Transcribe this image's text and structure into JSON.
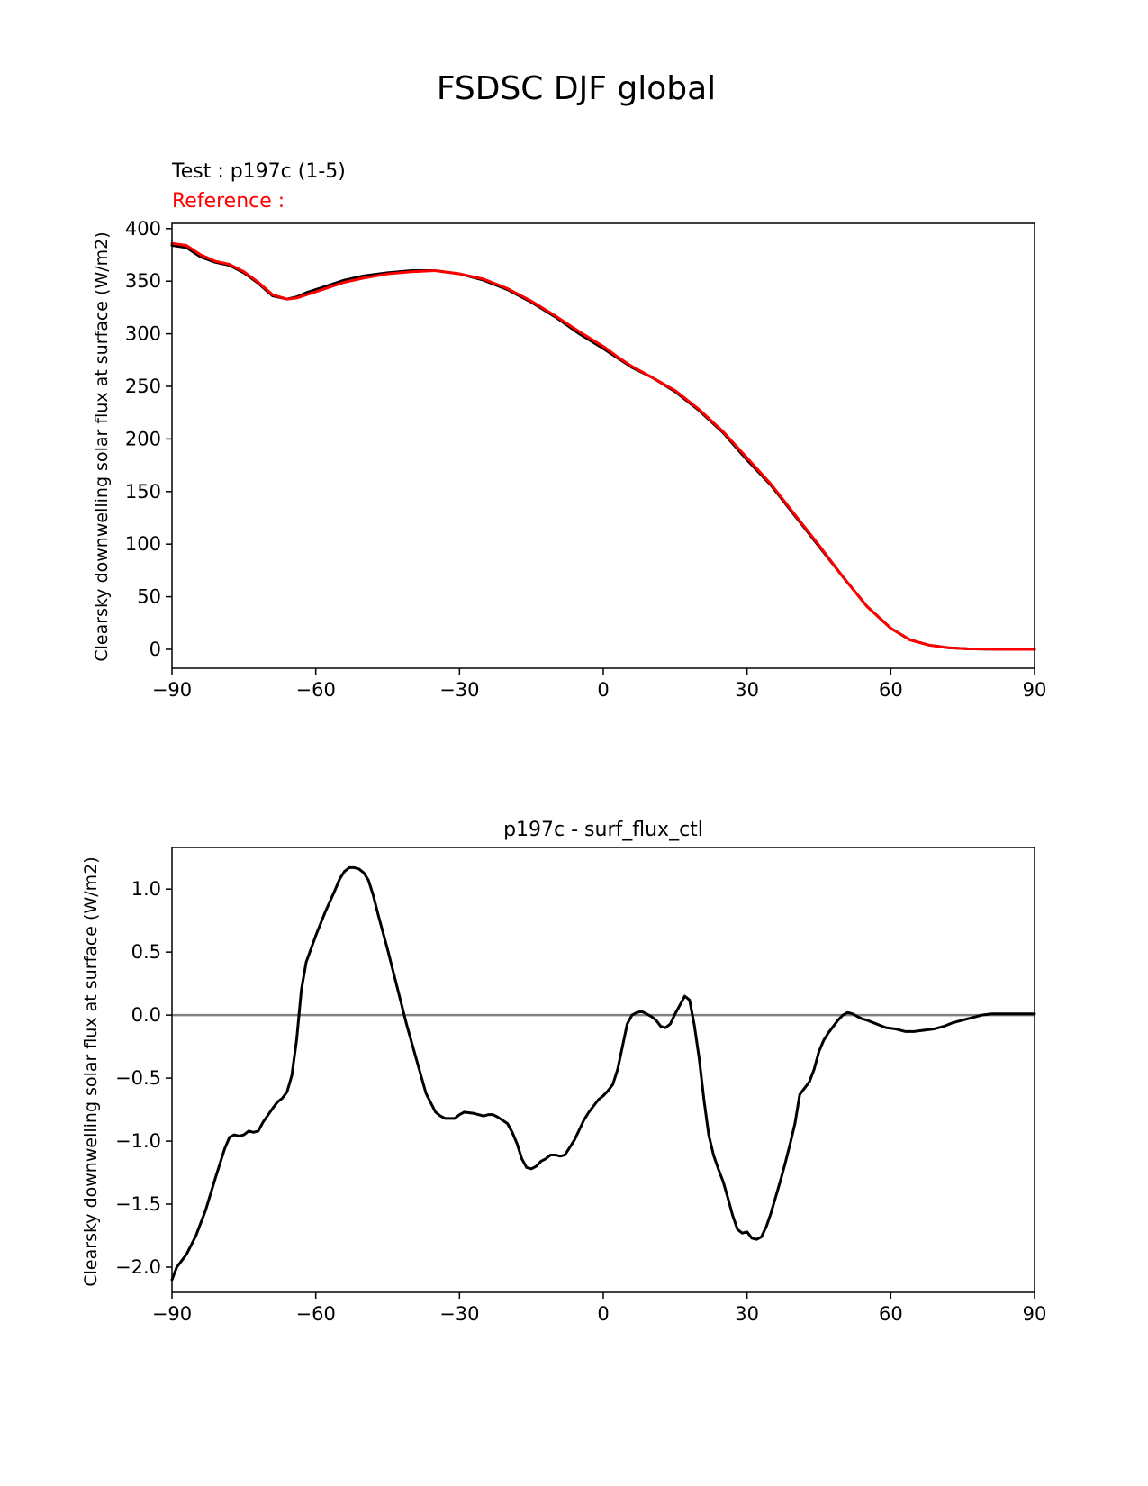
{
  "figure": {
    "suptitle": "FSDSC DJF global"
  },
  "chart_data": [
    {
      "type": "line",
      "legend_text": {
        "test": "Test : p197c (1-5)",
        "reference": "Reference :"
      },
      "xlabel": "",
      "ylabel": "Clearsky downwelling solar flux at surface (W/m2)",
      "xlim": [
        -90,
        90
      ],
      "ylim": [
        -18,
        405
      ],
      "xticks": [
        -90,
        -60,
        -30,
        0,
        30,
        60,
        90
      ],
      "xtick_labels": [
        "−90",
        "−60",
        "−30",
        "0",
        "30",
        "60",
        "90"
      ],
      "yticks": [
        0,
        50,
        100,
        150,
        200,
        250,
        300,
        350,
        400
      ],
      "ytick_labels": [
        "0",
        "50",
        "100",
        "150",
        "200",
        "250",
        "300",
        "350",
        "400"
      ],
      "grid": false,
      "series": [
        {
          "name": "Test : p197c (1-5)",
          "color": "#000000",
          "x": [
            -90,
            -87,
            -84,
            -81,
            -78,
            -75,
            -72,
            -69,
            -66,
            -64,
            -62,
            -58,
            -54,
            -50,
            -45,
            -40,
            -35,
            -30,
            -25,
            -20,
            -15,
            -10,
            -5,
            0,
            3,
            6,
            10,
            15,
            20,
            25,
            30,
            35,
            40,
            45,
            50,
            55,
            60,
            64,
            68,
            72,
            76,
            80,
            85,
            90
          ],
          "y": [
            384,
            382,
            373,
            368,
            365,
            358,
            348,
            336,
            333,
            335,
            339,
            345,
            351,
            355,
            358,
            360,
            360,
            357,
            351,
            342,
            330,
            316,
            300,
            286,
            277,
            268,
            259,
            245,
            227,
            206,
            180,
            156,
            127,
            98,
            69,
            41,
            20,
            9,
            4,
            1.5,
            0.5,
            0.2,
            0,
            0
          ]
        },
        {
          "name": "Reference :",
          "color": "#ff0000",
          "x": [
            -90,
            -87,
            -84,
            -81,
            -78,
            -75,
            -72,
            -69,
            -66,
            -64,
            -62,
            -58,
            -54,
            -50,
            -45,
            -40,
            -35,
            -30,
            -25,
            -20,
            -15,
            -10,
            -5,
            0,
            3,
            6,
            10,
            15,
            20,
            25,
            30,
            35,
            40,
            45,
            50,
            55,
            60,
            64,
            68,
            72,
            76,
            80,
            85,
            90
          ],
          "y": [
            386,
            384,
            375,
            369,
            366,
            359,
            349,
            337,
            333,
            334,
            337,
            343,
            349,
            353,
            357,
            359,
            360,
            357,
            352,
            343,
            331,
            317,
            302,
            288,
            278,
            269,
            259,
            246,
            228,
            207,
            182,
            157,
            128,
            99,
            69,
            41,
            20,
            9,
            4,
            1.5,
            0.5,
            0.2,
            0,
            0
          ]
        }
      ]
    },
    {
      "type": "line",
      "title": "p197c - surf_flux_ctl",
      "xlabel": "",
      "ylabel": "Clearsky downwelling solar flux at surface (W/m2)",
      "xlim": [
        -90,
        90
      ],
      "ylim": [
        -2.2,
        1.33
      ],
      "xticks": [
        -90,
        -60,
        -30,
        0,
        30,
        60,
        90
      ],
      "xtick_labels": [
        "−90",
        "−60",
        "−30",
        "0",
        "30",
        "60",
        "90"
      ],
      "yticks": [
        -2.0,
        -1.5,
        -1.0,
        -0.5,
        0.0,
        0.5,
        1.0
      ],
      "ytick_labels": [
        "−2.0",
        "−1.5",
        "−1.0",
        "−0.5",
        "0.0",
        "0.5",
        "1.0"
      ],
      "grid": false,
      "zero_line_color": "#808080",
      "series": [
        {
          "color": "#000000",
          "x": [
            -90,
            -89,
            -87,
            -85,
            -83,
            -81,
            -79,
            -78,
            -77,
            -76,
            -75,
            -74,
            -73,
            -72,
            -71,
            -69,
            -68,
            -67,
            -66,
            -65,
            -64,
            -63,
            -62,
            -60,
            -58,
            -56,
            -55,
            -54,
            -53,
            -52,
            -51,
            -50,
            -49,
            -48,
            -47,
            -45,
            -43,
            -41,
            -39,
            -37,
            -35,
            -34,
            -33,
            -31,
            -30,
            -29,
            -27,
            -26,
            -25,
            -24,
            -23,
            -22,
            -20,
            -19,
            -18,
            -17,
            -16,
            -15,
            -14,
            -13,
            -12,
            -11,
            -10,
            -9,
            -8,
            -7,
            -6,
            -5,
            -4,
            -3,
            -2,
            -1,
            0,
            1,
            2,
            3,
            4,
            5,
            6,
            7,
            8,
            9,
            10,
            11,
            12,
            13,
            14,
            15,
            16,
            17,
            18,
            19,
            20,
            21,
            22,
            23,
            24,
            25,
            26,
            27,
            28,
            29,
            30,
            31,
            32,
            33,
            34,
            35,
            36,
            37,
            38,
            39,
            40,
            41,
            42,
            43,
            44,
            45,
            46,
            47,
            48,
            49,
            50,
            51,
            52,
            53,
            54,
            55,
            57,
            59,
            61,
            63,
            65,
            67,
            69,
            71,
            73,
            75,
            77,
            79,
            81,
            83,
            85,
            87,
            90
          ],
          "y": [
            -2.1,
            -2.0,
            -1.9,
            -1.75,
            -1.55,
            -1.3,
            -1.06,
            -0.97,
            -0.95,
            -0.96,
            -0.95,
            -0.92,
            -0.93,
            -0.92,
            -0.85,
            -0.74,
            -0.69,
            -0.66,
            -0.61,
            -0.48,
            -0.2,
            0.2,
            0.42,
            0.63,
            0.82,
            0.99,
            1.08,
            1.14,
            1.17,
            1.17,
            1.16,
            1.13,
            1.07,
            0.95,
            0.8,
            0.52,
            0.22,
            -0.08,
            -0.35,
            -0.62,
            -0.77,
            -0.8,
            -0.82,
            -0.82,
            -0.79,
            -0.77,
            -0.78,
            -0.79,
            -0.8,
            -0.79,
            -0.79,
            -0.81,
            -0.86,
            -0.93,
            -1.02,
            -1.14,
            -1.21,
            -1.22,
            -1.2,
            -1.16,
            -1.14,
            -1.11,
            -1.11,
            -1.12,
            -1.11,
            -1.05,
            -0.99,
            -0.91,
            -0.83,
            -0.77,
            -0.72,
            -0.67,
            -0.64,
            -0.6,
            -0.55,
            -0.43,
            -0.25,
            -0.07,
            0.0,
            0.02,
            0.03,
            0.01,
            -0.01,
            -0.04,
            -0.09,
            -0.1,
            -0.07,
            0.01,
            0.08,
            0.15,
            0.12,
            -0.08,
            -0.34,
            -0.67,
            -0.95,
            -1.11,
            -1.22,
            -1.32,
            -1.45,
            -1.59,
            -1.7,
            -1.73,
            -1.72,
            -1.77,
            -1.78,
            -1.76,
            -1.68,
            -1.57,
            -1.44,
            -1.31,
            -1.17,
            -1.02,
            -0.86,
            -0.63,
            -0.58,
            -0.53,
            -0.43,
            -0.29,
            -0.2,
            -0.14,
            -0.09,
            -0.04,
            0.0,
            0.02,
            0.01,
            -0.01,
            -0.03,
            -0.04,
            -0.07,
            -0.1,
            -0.11,
            -0.13,
            -0.13,
            -0.12,
            -0.11,
            -0.09,
            -0.06,
            -0.04,
            -0.02,
            0.0,
            0.01,
            0.01,
            0.01,
            0.01,
            0.01
          ]
        }
      ]
    }
  ]
}
